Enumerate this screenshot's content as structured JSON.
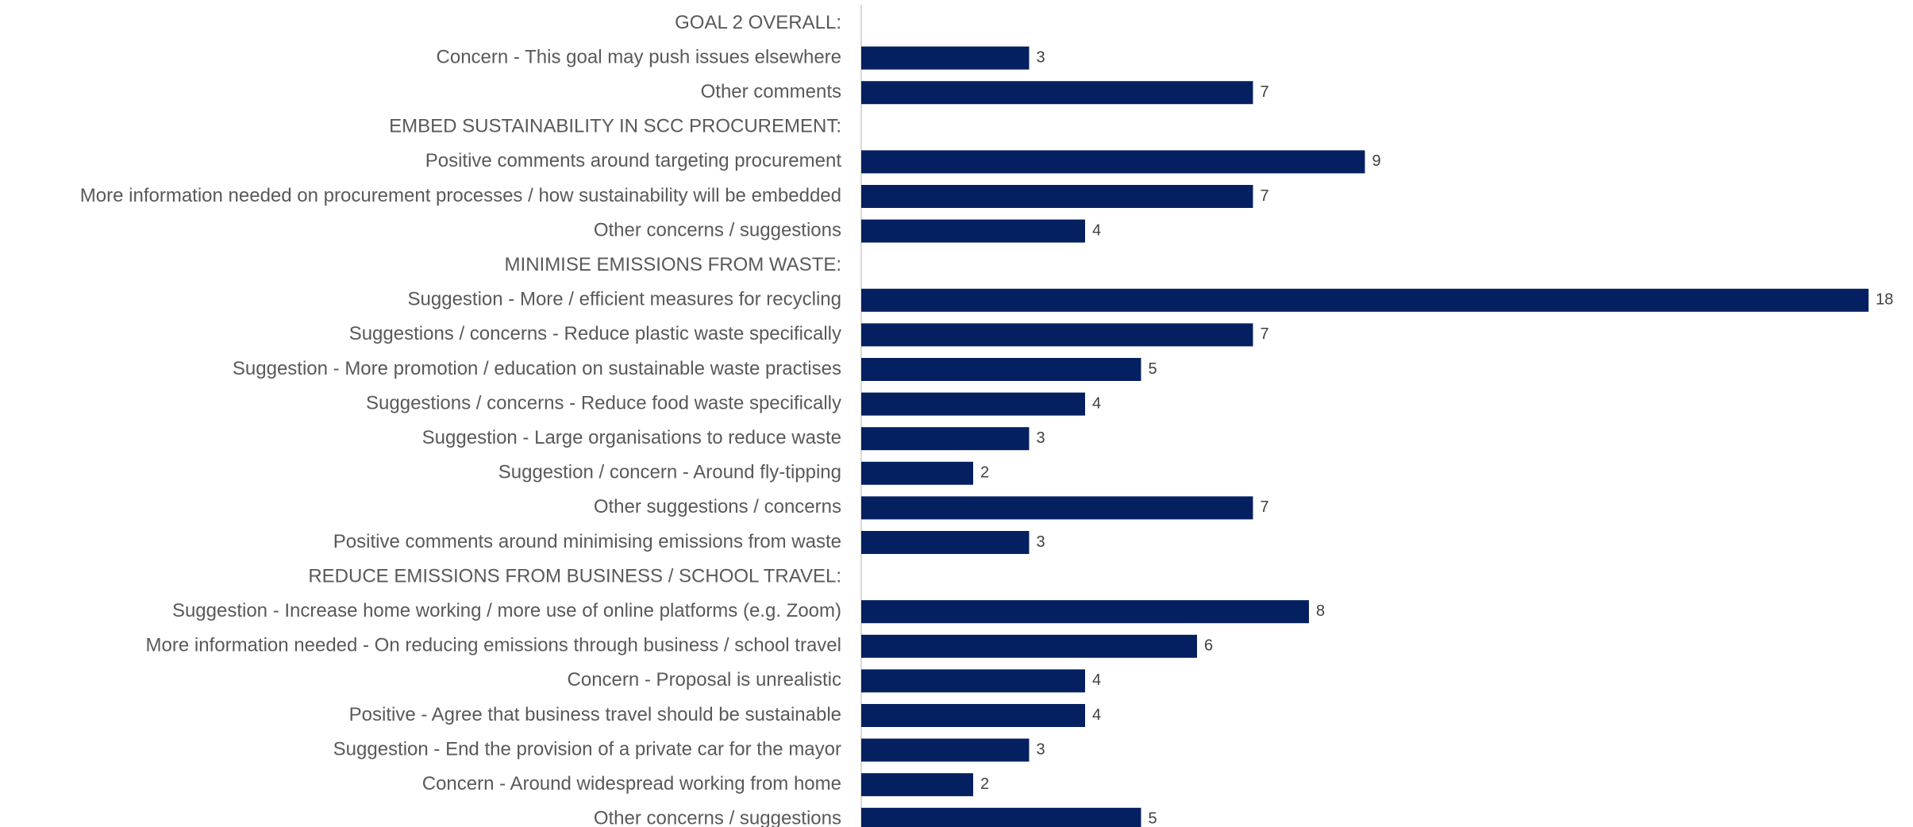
{
  "chart_data": {
    "type": "bar",
    "orientation": "horizontal",
    "title": "",
    "xlabel": "",
    "ylabel": "",
    "xlim": [
      0,
      18
    ],
    "grid": false,
    "legend": "none",
    "bar_color": "#052060",
    "axis_color": "#d9d9d9",
    "categories": [
      "GOAL 2 OVERALL:",
      "Concern - This goal may push issues elsewhere",
      "Other comments",
      "EMBED SUSTAINABILITY IN SCC PROCUREMENT:",
      "Positive comments around targeting procurement",
      "More information needed on procurement processes / how sustainability will be embedded",
      "Other concerns / suggestions",
      "MINIMISE EMISSIONS FROM WASTE:",
      "Suggestion - More / efficient measures for recycling",
      "Suggestions / concerns - Reduce plastic waste specifically",
      "Suggestion - More promotion / education on sustainable waste practises",
      "Suggestions / concerns - Reduce food waste specifically",
      "Suggestion - Large organisations to reduce waste",
      "Suggestion / concern - Around fly-tipping",
      "Other suggestions / concerns",
      "Positive comments around minimising emissions from waste",
      "REDUCE EMISSIONS FROM BUSINESS / SCHOOL TRAVEL:",
      "Suggestion - Increase home working / more use of online platforms (e.g. Zoom)",
      "More information needed - On reducing emissions through business / school travel",
      "Concern - Proposal is unrealistic",
      "Positive - Agree that business travel should be sustainable",
      "Suggestion - End the provision of a private car for the mayor",
      "Concern - Around widespread working from home",
      "Other concerns / suggestions"
    ],
    "values": [
      null,
      3,
      7,
      null,
      9,
      7,
      4,
      null,
      18,
      7,
      5,
      4,
      3,
      2,
      7,
      3,
      null,
      8,
      6,
      4,
      4,
      3,
      2,
      5
    ],
    "value_labels": [
      "",
      "3",
      "7",
      "",
      "9",
      "7",
      "4",
      "",
      "18",
      "7",
      "5",
      "4",
      "3",
      "2",
      "7",
      "3",
      "",
      "8",
      "6",
      "4",
      "4",
      "3",
      "2",
      "5"
    ]
  }
}
